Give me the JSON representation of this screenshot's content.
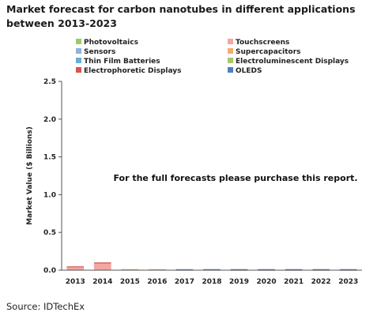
{
  "title": "Market forecast for carbon nanotubes in different applications between 2013-2023",
  "source": "Source: IDTechEx",
  "chart_data": {
    "type": "bar",
    "stacked": true,
    "categories": [
      "2013",
      "2014",
      "2015",
      "2016",
      "2017",
      "2018",
      "2019",
      "2020",
      "2021",
      "2022",
      "2023"
    ],
    "ylabel": "Market Value ($ Billions)",
    "xlabel": "",
    "ylim": [
      0,
      2.5
    ],
    "yticks": [
      "0.0",
      "0.5",
      "1.0",
      "1.5",
      "2.0",
      "2.5"
    ],
    "grid": false,
    "legend_placement": "top",
    "annotation": "For the full forecasts please purchase this report.",
    "series": [
      {
        "name": "Photovoltaics",
        "color": "#9acd6a",
        "values": [
          0,
          0,
          0,
          0,
          0,
          0,
          0,
          0,
          0,
          0,
          0
        ]
      },
      {
        "name": "Touchscreens",
        "color": "#f4a6a0",
        "values": [
          0.04,
          0.09,
          0.008,
          0.008,
          0.006,
          0.005,
          0.004,
          0.004,
          0.004,
          0.004,
          0.004
        ]
      },
      {
        "name": "Sensors",
        "color": "#8fb2dc",
        "values": [
          0,
          0,
          0.002,
          0.002,
          0.002,
          0.003,
          0.003,
          0.003,
          0.003,
          0.003,
          0.003
        ]
      },
      {
        "name": "Supercapacitors",
        "color": "#f5ae6b",
        "values": [
          0,
          0,
          0.002,
          0.002,
          0.002,
          0.002,
          0.002,
          0.002,
          0.002,
          0.002,
          0.002
        ]
      },
      {
        "name": "Thin Film Batteries",
        "color": "#6aaed6",
        "values": [
          0,
          0,
          0,
          0,
          0,
          0,
          0,
          0,
          0,
          0,
          0
        ]
      },
      {
        "name": "Electroluminescent Displays",
        "color": "#a8c66c",
        "values": [
          0,
          0,
          0,
          0,
          0,
          0,
          0,
          0,
          0,
          0,
          0
        ]
      },
      {
        "name": "Electrophoretic Displays",
        "color": "#d9534f",
        "values": [
          0.01,
          0.012,
          0,
          0,
          0,
          0,
          0,
          0,
          0,
          0,
          0
        ]
      },
      {
        "name": "OLEDS",
        "color": "#4f7fc2",
        "values": [
          0,
          0,
          0,
          0,
          0.002,
          0.003,
          0.004,
          0.004,
          0.004,
          0.004,
          0.004
        ]
      }
    ]
  }
}
